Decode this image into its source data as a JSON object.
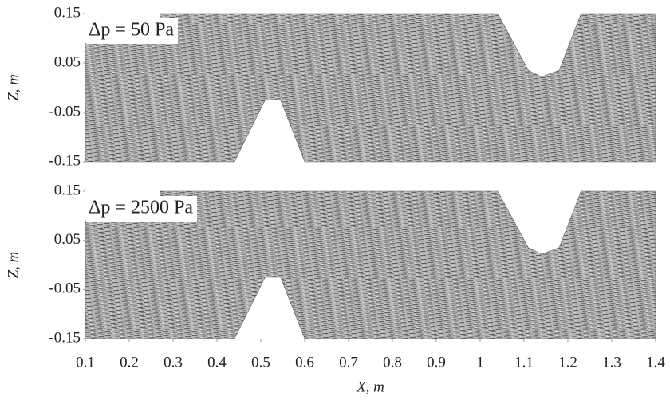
{
  "chart_data": [
    {
      "type": "vector-field",
      "annotation": "Δp = 50 Pa",
      "ylabel": "Z, m",
      "ylim": [
        -0.15,
        0.15
      ],
      "yticks": [
        0.15,
        0.05,
        -0.05,
        -0.15
      ],
      "xlim": [
        0.1,
        1.4
      ]
    },
    {
      "type": "vector-field",
      "annotation": "Δp = 2500 Pa",
      "ylabel": "Z, m",
      "xlabel": "X, m",
      "ylim": [
        -0.15,
        0.15
      ],
      "yticks": [
        0.15,
        0.05,
        -0.05,
        -0.15
      ],
      "xlim": [
        0.1,
        1.4
      ],
      "xticks": [
        0.1,
        0.2,
        0.3,
        0.4,
        0.5,
        0.6,
        0.7,
        0.8,
        0.9,
        1,
        1.1,
        1.2,
        1.3,
        1.4
      ]
    }
  ]
}
